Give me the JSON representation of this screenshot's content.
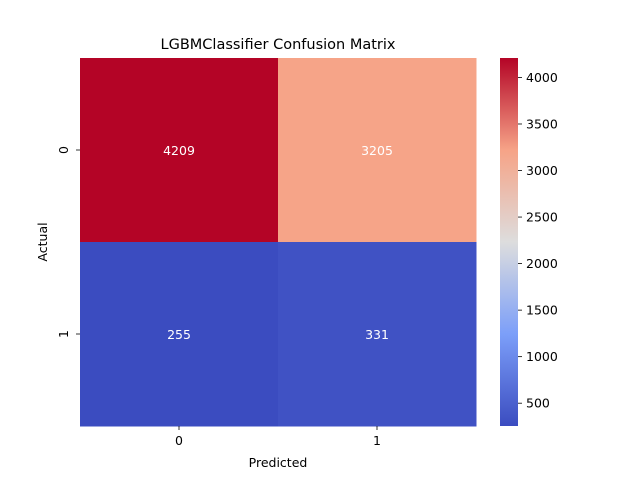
{
  "chart_data": {
    "type": "heatmap",
    "title": "LGBMClassifier Confusion Matrix",
    "xlabel": "Predicted",
    "ylabel": "Actual",
    "x_categories": [
      "0",
      "1"
    ],
    "y_categories": [
      "0",
      "1"
    ],
    "values": [
      [
        4209,
        3205
      ],
      [
        255,
        331
      ]
    ],
    "colormap": "coolwarm",
    "colorbar": {
      "min": 255,
      "max": 4209,
      "ticks": [
        500,
        1000,
        1500,
        2000,
        2500,
        3000,
        3500,
        4000
      ],
      "tick_labels": [
        "500",
        "1000",
        "1500",
        "2000",
        "2500",
        "3000",
        "3500",
        "4000"
      ]
    },
    "annotation_color": "#ffffff"
  }
}
